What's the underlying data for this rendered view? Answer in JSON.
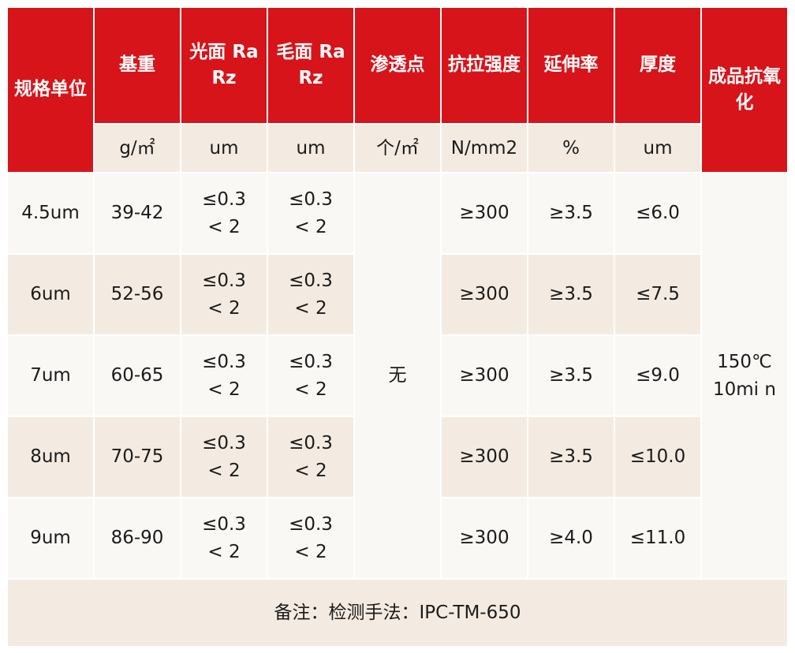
{
  "header": [
    "规格单位",
    "基重",
    "光面 Ra Rz",
    "毛面 Ra Rz",
    "渗透点",
    "抗拉强度",
    "延伸率",
    "厚度",
    "成品抗氧化"
  ],
  "units": [
    "g/㎡",
    "um",
    "um",
    "个/㎡",
    "N/mm2",
    "%",
    "um"
  ],
  "rows": [
    {
      "spec": "4.5um",
      "weight": "39-42",
      "shiny": "≤0.3\n< 2",
      "matte": "≤0.3\n< 2",
      "tensile": "≥300",
      "elong": "≥3.5",
      "thick": "≤6.0"
    },
    {
      "spec": "6um",
      "weight": "52-56",
      "shiny": "≤0.3\n< 2",
      "matte": "≤0.3\n< 2",
      "tensile": "≥300",
      "elong": "≥3.5",
      "thick": "≤7.5"
    },
    {
      "spec": "7um",
      "weight": "60-65",
      "shiny": "≤0.3\n< 2",
      "matte": "≤0.3\n< 2",
      "tensile": "≥300",
      "elong": "≥3.5",
      "thick": "≤9.0"
    },
    {
      "spec": "8um",
      "weight": "70-75",
      "shiny": "≤0.3\n< 2",
      "matte": "≤0.3\n< 2",
      "tensile": "≥300",
      "elong": "≥3.5",
      "thick": "≤10.0"
    },
    {
      "spec": "9um",
      "weight": "86-90",
      "shiny": "≤0.3\n< 2",
      "matte": "≤0.3\n< 2",
      "tensile": "≥300",
      "elong": "≥4.0",
      "thick": "≤11.0"
    }
  ],
  "penetration": "无",
  "oxidation": "150℃\n10mi n",
  "note": "备注：检测手法：IPC-TM-650",
  "colors": {
    "header_red": "#d7141a",
    "beige": "#f3ebe1",
    "light": "#faf8f5"
  }
}
